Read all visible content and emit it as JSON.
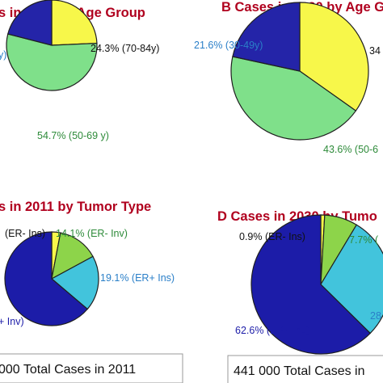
{
  "colors": {
    "title": "#b0001e",
    "slice_edge": "#1f1f1f",
    "age_young": "#2424a8",
    "age_mid": "#7fe08a",
    "age_old": "#f7f74a",
    "er_pos_inv": "#1c1ca8",
    "er_pos_ins": "#42c4dc",
    "er_neg_inv": "#8dd44a",
    "er_neg_ins": "#f7f74a",
    "label_dark_green": "#2e8b3a",
    "label_blue": "#2a7fc8",
    "label_navy": "#1c1ca8",
    "label_black": "#111111"
  },
  "totals": {
    "y2011": "000 Total Cases in 2011",
    "y2030": "441 000 Total Cases in"
  },
  "chart_data": [
    {
      "type": "pie",
      "title": "s in 2011 by Age Group",
      "slices": [
        {
          "value": 24.3,
          "label": "24.3% (70-84y)",
          "color": "#f7f74a",
          "label_color": "#111111"
        },
        {
          "value": 54.7,
          "label": "54.7% (50-69 y)",
          "color": "#7fe08a",
          "label_color": "#2e8b3a"
        },
        {
          "value": 21.0,
          "label": "y)",
          "color": "#2424a8",
          "label_color": "#2a7fc8"
        }
      ]
    },
    {
      "type": "pie",
      "title": "B  Cases in 2030 by Age G",
      "slices": [
        {
          "value": 34.8,
          "label": "34",
          "color": "#f7f74a",
          "label_color": "#111111"
        },
        {
          "value": 43.6,
          "label": "43.6% (50-6",
          "color": "#7fe08a",
          "label_color": "#2e8b3a"
        },
        {
          "value": 21.6,
          "label": "21.6% (30-49y)",
          "color": "#2424a8",
          "label_color": "#2a7fc8"
        }
      ]
    },
    {
      "type": "pie",
      "title": "s in 2011 by Tumor Type",
      "slices": [
        {
          "value": 3.0,
          "label": "(ER- Ins)",
          "color": "#f7f74a",
          "label_color": "#111111"
        },
        {
          "value": 14.1,
          "label": "14.1% (ER- Inv)",
          "color": "#8dd44a",
          "label_color": "#2e8b3a"
        },
        {
          "value": 19.1,
          "label": "19.1% (ER+ Ins)",
          "color": "#42c4dc",
          "label_color": "#2a7fc8"
        },
        {
          "value": 63.8,
          "label": "+ Inv)",
          "color": "#1c1ca8",
          "label_color": "#1c1ca8"
        }
      ]
    },
    {
      "type": "pie",
      "title": "D  Cases in 2030 by Tumo",
      "slices": [
        {
          "value": 0.9,
          "label": "0.9% (ER- Ins)",
          "color": "#f7f74a",
          "label_color": "#111111"
        },
        {
          "value": 7.7,
          "label": "7.7% (",
          "color": "#8dd44a",
          "label_color": "#2e8b3a"
        },
        {
          "value": 28.8,
          "label": "28",
          "color": "#42c4dc",
          "label_color": "#2a7fc8"
        },
        {
          "value": 62.6,
          "label": "62.6% (ER+ Inv)",
          "color": "#1c1ca8",
          "label_color": "#1c1ca8"
        }
      ]
    }
  ]
}
